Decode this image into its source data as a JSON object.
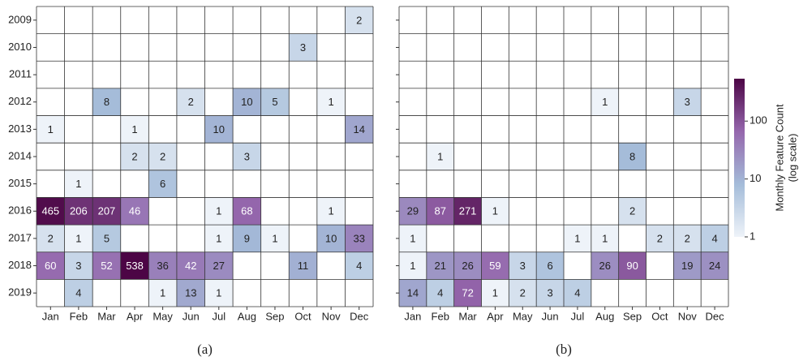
{
  "chart_data": [
    {
      "type": "heatmap",
      "panel_label": "(a)",
      "rows": [
        "2009",
        "2010",
        "2011",
        "2012",
        "2013",
        "2014",
        "2015",
        "2016",
        "2017",
        "2018",
        "2019"
      ],
      "columns": [
        "Jan",
        "Feb",
        "Mar",
        "Apr",
        "May",
        "Jun",
        "Jul",
        "Aug",
        "Sep",
        "Oct",
        "Nov",
        "Dec"
      ],
      "values": [
        [
          null,
          null,
          null,
          null,
          null,
          null,
          null,
          null,
          null,
          null,
          null,
          2
        ],
        [
          null,
          null,
          null,
          null,
          null,
          null,
          null,
          null,
          null,
          3,
          null,
          null
        ],
        [
          null,
          null,
          null,
          null,
          null,
          null,
          null,
          null,
          null,
          null,
          null,
          null
        ],
        [
          null,
          null,
          8,
          null,
          null,
          2,
          null,
          10,
          5,
          null,
          1,
          null
        ],
        [
          1,
          null,
          null,
          1,
          null,
          null,
          10,
          null,
          null,
          null,
          null,
          14
        ],
        [
          null,
          null,
          null,
          2,
          2,
          null,
          null,
          3,
          null,
          null,
          null,
          null
        ],
        [
          null,
          1,
          null,
          null,
          6,
          null,
          null,
          null,
          null,
          null,
          null,
          null
        ],
        [
          465,
          206,
          207,
          46,
          null,
          null,
          1,
          68,
          null,
          null,
          1,
          null
        ],
        [
          2,
          1,
          5,
          null,
          null,
          null,
          1,
          9,
          1,
          null,
          10,
          33
        ],
        [
          60,
          3,
          52,
          538,
          36,
          42,
          27,
          null,
          null,
          11,
          null,
          4
        ],
        [
          null,
          4,
          null,
          null,
          1,
          13,
          1,
          null,
          null,
          null,
          null,
          null
        ]
      ]
    },
    {
      "type": "heatmap",
      "panel_label": "(b)",
      "rows": [
        "2009",
        "2010",
        "2011",
        "2012",
        "2013",
        "2014",
        "2015",
        "2016",
        "2017",
        "2018",
        "2019"
      ],
      "columns": [
        "Jan",
        "Feb",
        "Mar",
        "Apr",
        "May",
        "Jun",
        "Jul",
        "Aug",
        "Sep",
        "Oct",
        "Nov",
        "Dec"
      ],
      "values": [
        [
          null,
          null,
          null,
          null,
          null,
          null,
          null,
          null,
          null,
          null,
          null,
          null
        ],
        [
          null,
          null,
          null,
          null,
          null,
          null,
          null,
          null,
          null,
          null,
          null,
          null
        ],
        [
          null,
          null,
          null,
          null,
          null,
          null,
          null,
          null,
          null,
          null,
          null,
          null
        ],
        [
          null,
          null,
          null,
          null,
          null,
          null,
          null,
          1,
          null,
          null,
          3,
          null
        ],
        [
          null,
          null,
          null,
          null,
          null,
          null,
          null,
          null,
          null,
          null,
          null,
          null
        ],
        [
          null,
          1,
          null,
          null,
          null,
          null,
          null,
          null,
          8,
          null,
          null,
          null
        ],
        [
          null,
          null,
          null,
          null,
          null,
          null,
          null,
          null,
          null,
          null,
          null,
          null
        ],
        [
          29,
          87,
          271,
          1,
          null,
          null,
          null,
          null,
          2,
          null,
          null,
          null
        ],
        [
          1,
          null,
          null,
          null,
          null,
          null,
          1,
          1,
          null,
          2,
          2,
          4
        ],
        [
          1,
          21,
          26,
          59,
          3,
          6,
          null,
          26,
          90,
          null,
          19,
          24
        ],
        [
          14,
          4,
          72,
          1,
          2,
          3,
          4,
          null,
          null,
          null,
          null,
          null
        ]
      ],
      "colorbar": {
        "title": [
          "Monthly Feature Count",
          "(log scale)"
        ],
        "log_scale": true,
        "lim": [
          1,
          540
        ],
        "ticks": [
          1,
          10,
          100
        ],
        "colors": [
          "#eef3f9",
          "#a4bcd9",
          "#9567ad",
          "#4c0545"
        ]
      }
    }
  ]
}
